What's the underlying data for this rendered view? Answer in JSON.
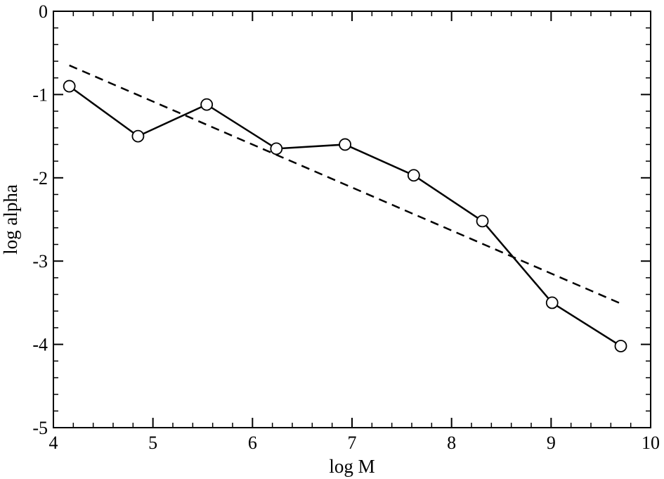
{
  "chart_data": {
    "type": "line",
    "xlabel": "log M",
    "ylabel": "log alpha",
    "xlim": [
      4,
      10
    ],
    "ylim": [
      -5,
      0
    ],
    "x_ticks": [
      4,
      5,
      6,
      7,
      8,
      9,
      10
    ],
    "y_ticks": [
      0,
      -1,
      -2,
      -3,
      -4,
      -5
    ],
    "x_tick_labels": [
      "4",
      "5",
      "6",
      "7",
      "8",
      "9",
      "10"
    ],
    "y_tick_labels": [
      "0",
      "-1",
      "-2",
      "-3",
      "-4",
      "-5"
    ],
    "x_minor_step": 0.2,
    "y_minor_step": 0.2,
    "grid": false,
    "series": [
      {
        "style": "solid-with-open-circles",
        "color": "#000000",
        "x": [
          4.16,
          4.85,
          5.54,
          6.24,
          6.93,
          7.62,
          8.31,
          9.01,
          9.7
        ],
        "y": [
          -0.9,
          -1.5,
          -1.12,
          -1.65,
          -1.6,
          -1.97,
          -2.52,
          -3.5,
          -4.02
        ]
      },
      {
        "style": "dashed-fit",
        "color": "#000000",
        "x": [
          4.16,
          9.7
        ],
        "y": [
          -0.65,
          -3.51
        ]
      }
    ]
  }
}
